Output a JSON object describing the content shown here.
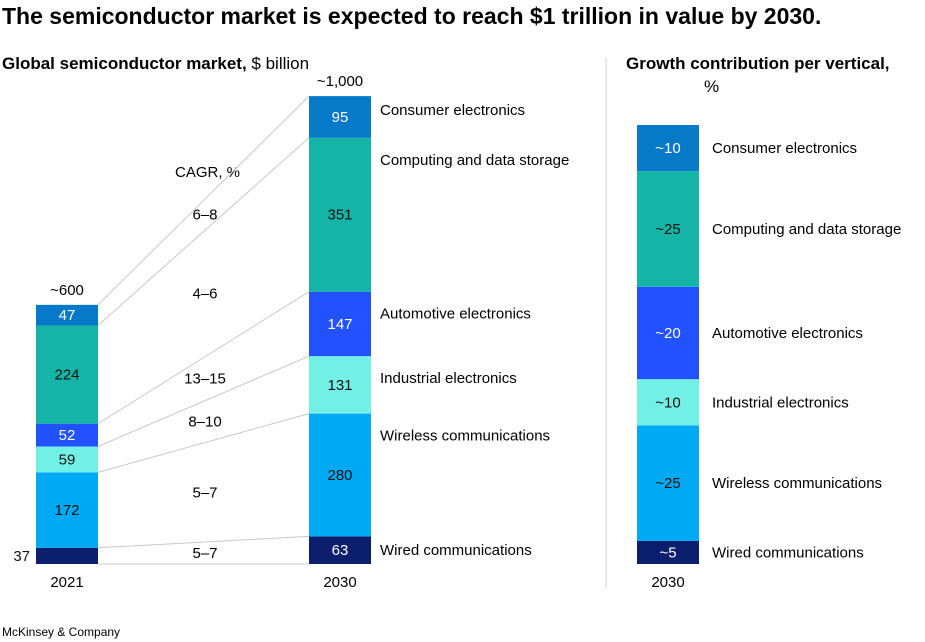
{
  "title": "The semiconductor market is expected to reach $1 trillion in value by 2030.",
  "source": "McKinsey & Company",
  "chart_data": [
    {
      "type": "bar",
      "stacked": true,
      "title_bold": "Global semiconductor market,",
      "title_unit": "$ billion",
      "categories": [
        "2021",
        "2030"
      ],
      "totals": [
        "~600",
        "~1,000"
      ],
      "cagr_header": "CAGR, %",
      "series": [
        {
          "name": "Wired communications",
          "color": "#0b1f6e",
          "text_color": "#ffffff",
          "values": [
            37,
            63
          ],
          "labels": [
            "37",
            "63"
          ],
          "cagr": "5–7"
        },
        {
          "name": "Wireless communications",
          "color": "#00a9f4",
          "text_color": "#111111",
          "values": [
            172,
            280
          ],
          "labels": [
            "172",
            "280"
          ],
          "cagr": "5–7"
        },
        {
          "name": "Industrial electronics",
          "color": "#73f0e6",
          "text_color": "#111111",
          "values": [
            59,
            131
          ],
          "labels": [
            "59",
            "131"
          ],
          "cagr": "8–10"
        },
        {
          "name": "Automotive electronics",
          "color": "#2251ff",
          "text_color": "#ffffff",
          "values": [
            52,
            147
          ],
          "labels": [
            "52",
            "147"
          ],
          "cagr": "13–15"
        },
        {
          "name": "Computing and data storage",
          "color": "#14b5a6",
          "text_color": "#111111",
          "values": [
            224,
            351
          ],
          "labels": [
            "224",
            "351"
          ],
          "cagr": "4–6"
        },
        {
          "name": "Consumer electronics",
          "color": "#0679c8",
          "text_color": "#ffffff",
          "values": [
            47,
            95
          ],
          "labels": [
            "47",
            "95"
          ],
          "cagr": "6–8"
        }
      ]
    },
    {
      "type": "bar",
      "stacked": true,
      "title_bold": "Growth contribution per vertical,",
      "title_unit": "%",
      "categories": [
        "2030"
      ],
      "series": [
        {
          "name": "Wired communications",
          "color": "#0b1f6e",
          "text_color": "#ffffff",
          "values": [
            5
          ],
          "labels": [
            "~5"
          ]
        },
        {
          "name": "Wireless communications",
          "color": "#00a9f4",
          "text_color": "#111111",
          "values": [
            25
          ],
          "labels": [
            "~25"
          ]
        },
        {
          "name": "Industrial electronics",
          "color": "#73f0e6",
          "text_color": "#111111",
          "values": [
            10
          ],
          "labels": [
            "~10"
          ]
        },
        {
          "name": "Automotive electronics",
          "color": "#2251ff",
          "text_color": "#ffffff",
          "values": [
            20
          ],
          "labels": [
            "~20"
          ]
        },
        {
          "name": "Computing and data storage",
          "color": "#14b5a6",
          "text_color": "#111111",
          "values": [
            25
          ],
          "labels": [
            "~25"
          ]
        },
        {
          "name": "Consumer electronics",
          "color": "#0679c8",
          "text_color": "#ffffff",
          "values": [
            10
          ],
          "labels": [
            "~10"
          ]
        }
      ]
    }
  ]
}
